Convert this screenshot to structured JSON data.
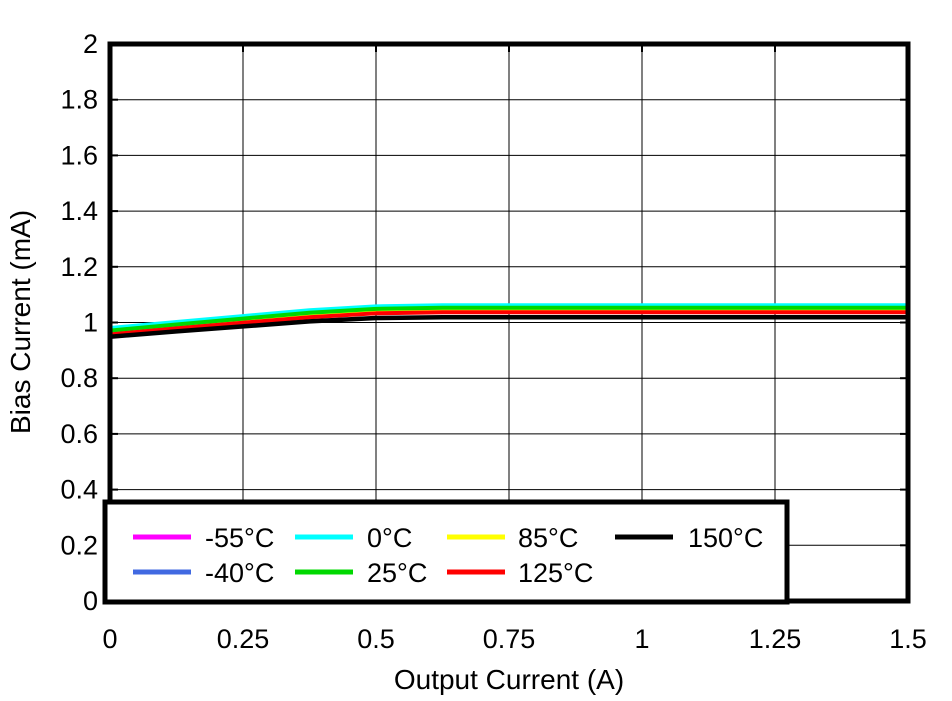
{
  "chart_data": {
    "type": "line",
    "title": "",
    "xlabel": "Output Current (A)",
    "ylabel": "Bias Current (mA)",
    "xlim": [
      0,
      1.5
    ],
    "ylim": [
      0,
      2
    ],
    "grid": true,
    "legend_position": "bottom-left-inside",
    "xticks": [
      0,
      0.25,
      0.5,
      0.75,
      1,
      1.25,
      1.5
    ],
    "xtick_labels": [
      "0",
      "0.25",
      "0.5",
      "0.75",
      "1",
      "1.25",
      "1.5"
    ],
    "yticks": [
      0,
      0.2,
      0.4,
      0.6,
      0.8,
      1,
      1.2,
      1.4,
      1.6,
      1.8,
      2
    ],
    "ytick_labels": [
      "0",
      "0.2",
      "0.4",
      "0.6",
      "0.8",
      "1",
      "1.2",
      "1.4",
      "1.6",
      "1.8",
      "2"
    ],
    "x": [
      0,
      0.125,
      0.25,
      0.375,
      0.5,
      0.625,
      0.75,
      1.0,
      1.25,
      1.5
    ],
    "series": [
      {
        "name": "-55°C",
        "color": "#FF00FF",
        "width": 4,
        "values": [
          0.977,
          0.999,
          1.02,
          1.041,
          1.055,
          1.059,
          1.059,
          1.059,
          1.059,
          1.059
        ]
      },
      {
        "name": "-40°C",
        "color": "#4169E1",
        "width": 4,
        "values": [
          0.974,
          0.996,
          1.017,
          1.038,
          1.052,
          1.056,
          1.056,
          1.056,
          1.056,
          1.056
        ]
      },
      {
        "name": "0°C",
        "color": "#00FFFF",
        "width": 4,
        "values": [
          0.98,
          1.002,
          1.023,
          1.044,
          1.058,
          1.062,
          1.062,
          1.062,
          1.062,
          1.062
        ]
      },
      {
        "name": "25°C",
        "color": "#00D800",
        "width": 4,
        "values": [
          0.971,
          0.993,
          1.014,
          1.035,
          1.049,
          1.053,
          1.053,
          1.053,
          1.053,
          1.053
        ]
      },
      {
        "name": "85°C",
        "color": "#FFFF00",
        "width": 4,
        "values": [
          0.962,
          0.984,
          1.005,
          1.026,
          1.04,
          1.044,
          1.044,
          1.044,
          1.044,
          1.044
        ]
      },
      {
        "name": "125°C",
        "color": "#FF0000",
        "width": 4,
        "values": [
          0.957,
          0.979,
          0.999,
          1.019,
          1.033,
          1.037,
          1.037,
          1.037,
          1.037,
          1.037
        ]
      },
      {
        "name": "150°C",
        "color": "#000000",
        "width": 4.5,
        "values": [
          0.949,
          0.968,
          0.986,
          1.004,
          1.016,
          1.019,
          1.019,
          1.019,
          1.019,
          1.019
        ]
      }
    ],
    "draw_order": [
      "-55°C",
      "-40°C",
      "85°C",
      "0°C",
      "25°C",
      "125°C",
      "150°C"
    ],
    "legend_rows": [
      [
        "-55°C",
        "0°C",
        "85°C",
        "150°C"
      ],
      [
        "-40°C",
        "25°C",
        "125°C"
      ]
    ]
  }
}
